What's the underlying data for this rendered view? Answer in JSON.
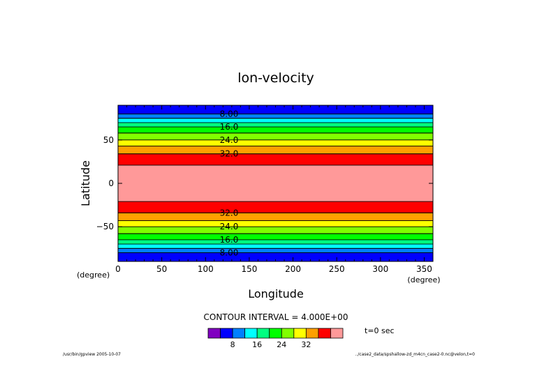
{
  "chart_data": {
    "type": "contour",
    "title": "lon-velocity",
    "xlabel": "Longitude",
    "ylabel": "Latitude",
    "x_unit": "(degree)",
    "y_unit": "(degree)",
    "xlim": [
      0,
      360
    ],
    "ylim": [
      -90,
      90
    ],
    "xticks": [
      0,
      50,
      100,
      150,
      200,
      250,
      300,
      350
    ],
    "yticks": [
      -50,
      0,
      50
    ],
    "ytick_labels": [
      "−50",
      "0",
      "50"
    ],
    "bands": [
      {
        "lat0": 80,
        "lat1": 90,
        "color": "#0000ff"
      },
      {
        "lat0": 75,
        "lat1": 80,
        "color": "#0080ff"
      },
      {
        "lat0": 70,
        "lat1": 75,
        "color": "#00ffff"
      },
      {
        "lat0": 65,
        "lat1": 70,
        "color": "#00ff80"
      },
      {
        "lat0": 58,
        "lat1": 65,
        "color": "#00ff00"
      },
      {
        "lat0": 50,
        "lat1": 58,
        "color": "#80ff00"
      },
      {
        "lat0": 43,
        "lat1": 50,
        "color": "#ffff00"
      },
      {
        "lat0": 34,
        "lat1": 43,
        "color": "#ffa000"
      },
      {
        "lat0": 21,
        "lat1": 34,
        "color": "#ff0000"
      },
      {
        "lat0": -21,
        "lat1": 21,
        "color": "#ff9999"
      },
      {
        "lat0": -34,
        "lat1": -21,
        "color": "#ff0000"
      },
      {
        "lat0": -43,
        "lat1": -34,
        "color": "#ffa000"
      },
      {
        "lat0": -50,
        "lat1": -43,
        "color": "#ffff00"
      },
      {
        "lat0": -58,
        "lat1": -50,
        "color": "#80ff00"
      },
      {
        "lat0": -65,
        "lat1": -58,
        "color": "#00ff00"
      },
      {
        "lat0": -70,
        "lat1": -65,
        "color": "#00ff80"
      },
      {
        "lat0": -75,
        "lat1": -70,
        "color": "#00ffff"
      },
      {
        "lat0": -80,
        "lat1": -75,
        "color": "#0080ff"
      },
      {
        "lat0": -90,
        "lat1": -80,
        "color": "#0000ff"
      }
    ],
    "contour_labels": [
      {
        "text": "8.00",
        "lat": 80
      },
      {
        "text": "16.0",
        "lat": 65
      },
      {
        "text": "24.0",
        "lat": 50
      },
      {
        "text": "32.0",
        "lat": 34
      },
      {
        "text": "32.0",
        "lat": -34
      },
      {
        "text": "24.0",
        "lat": -50
      },
      {
        "text": "16.0",
        "lat": -65
      },
      {
        "text": "8.00",
        "lat": -80
      }
    ],
    "contour_interval_label": "CONTOUR INTERVAL = 4.000E+00",
    "time_label": "t=0 sec",
    "colorbar_colors": [
      "#8000c0",
      "#0000ff",
      "#0080ff",
      "#00ffff",
      "#00ff80",
      "#00ff00",
      "#80ff00",
      "#ffff00",
      "#ffa000",
      "#ff0000",
      "#ff9999"
    ],
    "colorbar_ticks": [
      "8",
      "16",
      "24",
      "32"
    ],
    "footer_left": "/usr/bin/gpview  2005-10-07",
    "footer_right": "../case2_data/spshallow-zd_m4cn_case2-0.nc@velon,t=0"
  }
}
